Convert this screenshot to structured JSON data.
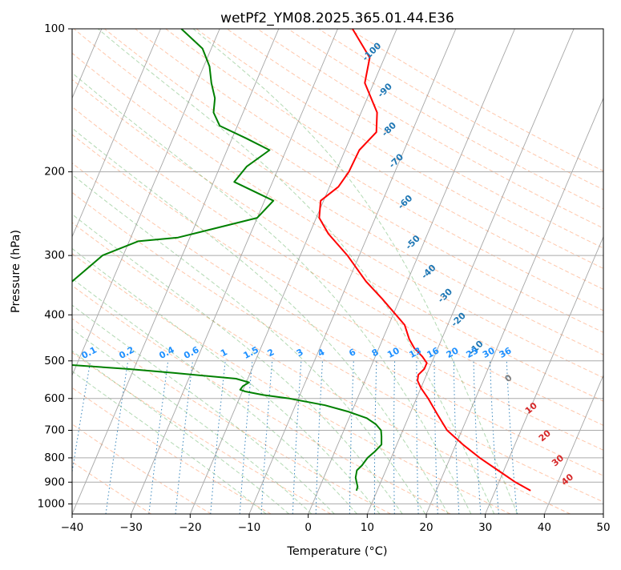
{
  "chart_data": {
    "type": "line",
    "title": "wetPf2_YM08.2025.365.01.44.E36",
    "xlabel": "Temperature (°C)",
    "ylabel": "Pressure (hPa)",
    "xlim": [
      -40,
      50
    ],
    "ylim": [
      1050,
      100
    ],
    "y_scale": "log",
    "grid": true,
    "x_ticks": [
      -40,
      -30,
      -20,
      -10,
      0,
      10,
      20,
      30,
      40,
      50
    ],
    "y_ticks": [
      100,
      200,
      300,
      400,
      500,
      600,
      700,
      800,
      900,
      1000
    ],
    "skew": 35,
    "colors": {
      "temperature": "#ff0000",
      "dewpoint": "#008000",
      "dry_adiabat": "#ff9966",
      "moist_adiabat": "#55aa55",
      "mixing_ratio": "#1f77b4",
      "isotherm": "#888888",
      "isobar": "#aaaaaa",
      "skew_label": "#1f77b4",
      "mixing_label": "#1e90ff",
      "warm_label": "#d62728"
    },
    "series": [
      {
        "key": "temperature",
        "points": [
          [
            938,
            36.0
          ],
          [
            900,
            32.8
          ],
          [
            850,
            29.0
          ],
          [
            800,
            25.0
          ],
          [
            750,
            21.2
          ],
          [
            700,
            17.5
          ],
          [
            650,
            14.8
          ],
          [
            600,
            12.0
          ],
          [
            570,
            10.0
          ],
          [
            550,
            8.9
          ],
          [
            535,
            8.6
          ],
          [
            520,
            9.2
          ],
          [
            505,
            9.2
          ],
          [
            490,
            8.0
          ],
          [
            470,
            6.0
          ],
          [
            450,
            4.5
          ],
          [
            420,
            2.7
          ],
          [
            400,
            0.5
          ],
          [
            370,
            -3.0
          ],
          [
            340,
            -7.0
          ],
          [
            300,
            -12.0
          ],
          [
            270,
            -16.8
          ],
          [
            250,
            -19.5
          ],
          [
            230,
            -20.5
          ],
          [
            215,
            -18.5
          ],
          [
            200,
            -17.8
          ],
          [
            180,
            -17.6
          ],
          [
            165,
            -16.0
          ],
          [
            150,
            -17.3
          ],
          [
            130,
            -21.5
          ],
          [
            115,
            -22.5
          ],
          [
            100,
            -27.5
          ]
        ]
      },
      {
        "key": "dewpoint",
        "points": [
          [
            938,
            6.5
          ],
          [
            920,
            6.4
          ],
          [
            900,
            5.9
          ],
          [
            880,
            5.4
          ],
          [
            850,
            5.1
          ],
          [
            830,
            5.6
          ],
          [
            800,
            6.0
          ],
          [
            775,
            6.8
          ],
          [
            750,
            7.4
          ],
          [
            720,
            6.8
          ],
          [
            700,
            6.3
          ],
          [
            680,
            5.0
          ],
          [
            660,
            3.0
          ],
          [
            640,
            -0.5
          ],
          [
            620,
            -5.0
          ],
          [
            600,
            -11.5
          ],
          [
            590,
            -16.2
          ],
          [
            580,
            -19.5
          ],
          [
            575,
            -20.5
          ],
          [
            565,
            -20.3
          ],
          [
            555,
            -19.5
          ],
          [
            545,
            -22.0
          ],
          [
            530,
            -33.0
          ],
          [
            520,
            -41.0
          ],
          [
            510,
            -51.0
          ],
          [
            350,
            -57.5
          ],
          [
            300,
            -53.5
          ],
          [
            280,
            -48.5
          ],
          [
            275,
            -42.0
          ],
          [
            250,
            -30.0
          ],
          [
            230,
            -28.5
          ],
          [
            210,
            -36.5
          ],
          [
            195,
            -35.5
          ],
          [
            180,
            -32.8
          ],
          [
            170,
            -37.6
          ],
          [
            160,
            -43.0
          ],
          [
            150,
            -45.0
          ],
          [
            140,
            -45.8
          ],
          [
            130,
            -47.5
          ],
          [
            120,
            -49.0
          ],
          [
            110,
            -51.5
          ],
          [
            100,
            -56.5
          ]
        ]
      }
    ],
    "skew_labels": [
      {
        "text": "-100",
        "p": 112,
        "t": -22.5
      },
      {
        "text": "-90",
        "p": 135,
        "t": -17.5
      },
      {
        "text": "-80",
        "p": 163,
        "t": -14.0
      },
      {
        "text": "-70",
        "p": 190,
        "t": -10.5
      },
      {
        "text": "-60",
        "p": 232,
        "t": -6.0
      },
      {
        "text": "-50",
        "p": 282,
        "t": -1.8
      },
      {
        "text": "-40",
        "p": 325,
        "t": 3.0
      },
      {
        "text": "-30",
        "p": 365,
        "t": 7.5
      },
      {
        "text": "-20",
        "p": 410,
        "t": 11.5
      },
      {
        "text": "-10",
        "p": 470,
        "t": 16.5
      }
    ],
    "mixing_labels": [
      "0.1",
      "0.2",
      "0.4",
      "0.6",
      "1",
      "1.5",
      "2",
      "3",
      "4",
      "6",
      "8",
      "10",
      "13",
      "16",
      "20",
      "25",
      "30",
      "36"
    ],
    "warm_labels": [
      {
        "text": "0",
        "p": 545,
        "t": 24.2,
        "color": "#7f7f7f"
      },
      {
        "text": "10",
        "p": 630,
        "t": 30.2,
        "color": "#d62728"
      },
      {
        "text": "20",
        "p": 720,
        "t": 34.5,
        "color": "#d62728"
      },
      {
        "text": "30",
        "p": 812,
        "t": 38.5,
        "color": "#d62728"
      },
      {
        "text": "40",
        "p": 890,
        "t": 41.5,
        "color": "#d62728"
      }
    ]
  }
}
